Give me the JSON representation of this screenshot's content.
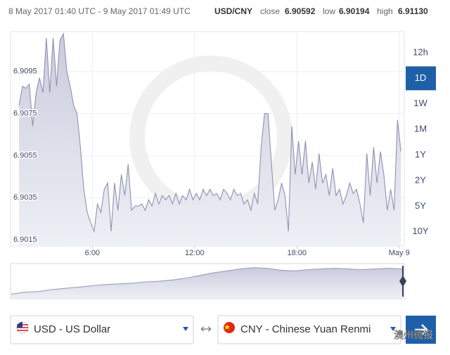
{
  "header": {
    "range": "8 May 2017 01:40 UTC - 9 May 2017 01:49 UTC",
    "pair": "USD/CNY",
    "close_label": "close",
    "close": "6.90592",
    "low_label": "low",
    "low": "6.90194",
    "high_label": "high",
    "high": "6.91130"
  },
  "ranges": {
    "items": [
      "12h",
      "1D",
      "1W",
      "1M",
      "1Y",
      "2Y",
      "5Y",
      "10Y"
    ],
    "active": 1
  },
  "from_currency": "USD - US Dollar",
  "to_currency": "CNY - Chinese Yuan Renmi",
  "watermark": "澳州微报",
  "chart_data": [
    {
      "type": "area",
      "color": "#8e92b2",
      "grid": true,
      "x": [
        1.7,
        1.9,
        2.1,
        2.3,
        2.5,
        2.7,
        2.9,
        3.1,
        3.3,
        3.5,
        3.7,
        3.9,
        4.1,
        4.3,
        4.5,
        4.7,
        4.9,
        5.1,
        5.3,
        5.5,
        5.7,
        5.9,
        6.1,
        6.3,
        6.5,
        6.7,
        6.9,
        7.1,
        7.3,
        7.5,
        7.7,
        7.9,
        8.1,
        8.3,
        8.5,
        8.7,
        8.9,
        9.1,
        9.3,
        9.5,
        9.7,
        9.9,
        10.1,
        10.3,
        10.5,
        10.7,
        10.9,
        11.1,
        11.3,
        11.5,
        11.7,
        11.9,
        12.1,
        12.3,
        12.5,
        12.7,
        12.9,
        13.1,
        13.3,
        13.5,
        13.7,
        13.9,
        14.1,
        14.3,
        14.5,
        14.7,
        14.9,
        15.1,
        15.3,
        15.5,
        15.7,
        15.9,
        16.1,
        16.3,
        16.5,
        16.7,
        16.9,
        17.1,
        17.3,
        17.5,
        17.7,
        17.9,
        18.1,
        18.3,
        18.5,
        18.7,
        18.9,
        19.1,
        19.3,
        19.5,
        19.7,
        19.9,
        20.1,
        20.3,
        20.5,
        20.7,
        20.9,
        21.1,
        21.3,
        21.5,
        21.7,
        21.9,
        22.1,
        22.3,
        22.5,
        22.7,
        22.9,
        23.1,
        23.3,
        23.5,
        23.7,
        23.9,
        24.1
      ],
      "values": [
        6.9079,
        6.9088,
        6.9087,
        6.9089,
        6.9069,
        6.9085,
        6.9092,
        6.9085,
        6.9111,
        6.9085,
        6.9111,
        6.9088,
        6.911,
        6.9113,
        6.9095,
        6.9088,
        6.9079,
        6.9075,
        6.9059,
        6.9039,
        6.9028,
        6.9023,
        6.9019,
        6.9032,
        6.9028,
        6.9039,
        6.9042,
        6.9019,
        6.9042,
        6.9029,
        6.9046,
        6.9036,
        6.9051,
        6.9029,
        6.9031,
        6.9031,
        6.9032,
        6.9029,
        6.9034,
        6.9031,
        6.9037,
        6.9032,
        6.9036,
        6.9034,
        6.9036,
        6.9032,
        6.9037,
        6.9032,
        6.9036,
        6.9034,
        6.9039,
        6.9034,
        6.9037,
        6.9034,
        6.9039,
        6.9036,
        6.9039,
        6.9036,
        6.9037,
        6.9034,
        6.9039,
        6.9037,
        6.9034,
        6.9039,
        6.9036,
        6.9037,
        6.9032,
        6.9034,
        6.9029,
        6.9037,
        6.9032,
        6.9059,
        6.9075,
        6.9075,
        6.9052,
        6.9029,
        6.9034,
        6.9042,
        6.9036,
        6.9019,
        6.9069,
        6.9046,
        6.9062,
        6.9046,
        6.9062,
        6.9042,
        6.9052,
        6.9039,
        6.9056,
        6.9042,
        6.9046,
        6.9036,
        6.9049,
        6.9036,
        6.9039,
        6.9032,
        6.9036,
        6.9042,
        6.9037,
        6.9039,
        6.9032,
        6.9023,
        6.9056,
        6.9036,
        6.9059,
        6.9042,
        6.9057,
        6.9046,
        6.9029,
        6.9039,
        6.9029,
        6.9072,
        6.9057
      ],
      "xlim": [
        1.2,
        24.3
      ],
      "xticks": [
        {
          "value": 6,
          "label": "6:00"
        },
        {
          "value": 12,
          "label": "12:00"
        },
        {
          "value": 18,
          "label": "18:00"
        },
        {
          "value": 24,
          "label": "May 9"
        }
      ],
      "ylim": [
        6.9012,
        6.9114
      ],
      "yticks": [
        6.9015,
        6.9035,
        6.9055,
        6.9075,
        6.9095
      ]
    },
    {
      "type": "area",
      "color": "#9a9db5",
      "values": [
        0.12,
        0.18,
        0.2,
        0.26,
        0.3,
        0.34,
        0.38,
        0.42,
        0.44,
        0.46,
        0.5,
        0.52,
        0.56,
        0.62,
        0.7,
        0.78,
        0.84,
        0.9,
        0.94,
        0.92,
        0.86,
        0.84,
        0.88,
        0.9,
        0.92,
        0.9,
        0.88,
        0.9,
        0.92,
        0.9
      ],
      "ylim": [
        0,
        1
      ]
    }
  ]
}
